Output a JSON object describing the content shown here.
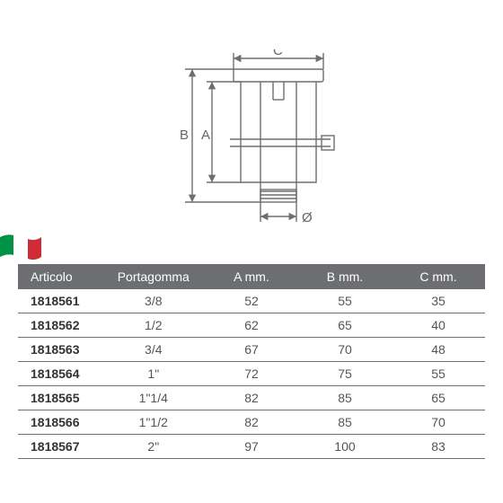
{
  "diagram": {
    "labels": {
      "A": "A",
      "B": "B",
      "C": "C",
      "diameter": "Ø"
    },
    "stroke": "#6d6e71",
    "stroke_width": 1.4
  },
  "flag": {
    "green": "#009246",
    "white": "#ffffff",
    "red": "#ce2b37"
  },
  "table": {
    "header_bg": "#6d6e71",
    "header_fg": "#ffffff",
    "row_border": "#6d6e71",
    "cell_fg": "#555555",
    "art_fg": "#333333",
    "columns": [
      "Articolo",
      "Portagomma",
      "A mm.",
      "B mm.",
      "C mm."
    ],
    "rows": [
      [
        "1818561",
        "3/8",
        "52",
        "55",
        "35"
      ],
      [
        "1818562",
        "1/2",
        "62",
        "65",
        "40"
      ],
      [
        "1818563",
        "3/4",
        "67",
        "70",
        "48"
      ],
      [
        "1818564",
        "1\"",
        "72",
        "75",
        "55"
      ],
      [
        "1818565",
        "1\"1/4",
        "82",
        "85",
        "65"
      ],
      [
        "1818566",
        "1\"1/2",
        "82",
        "85",
        "70"
      ],
      [
        "1818567",
        "2\"",
        "97",
        "100",
        "83"
      ]
    ]
  }
}
